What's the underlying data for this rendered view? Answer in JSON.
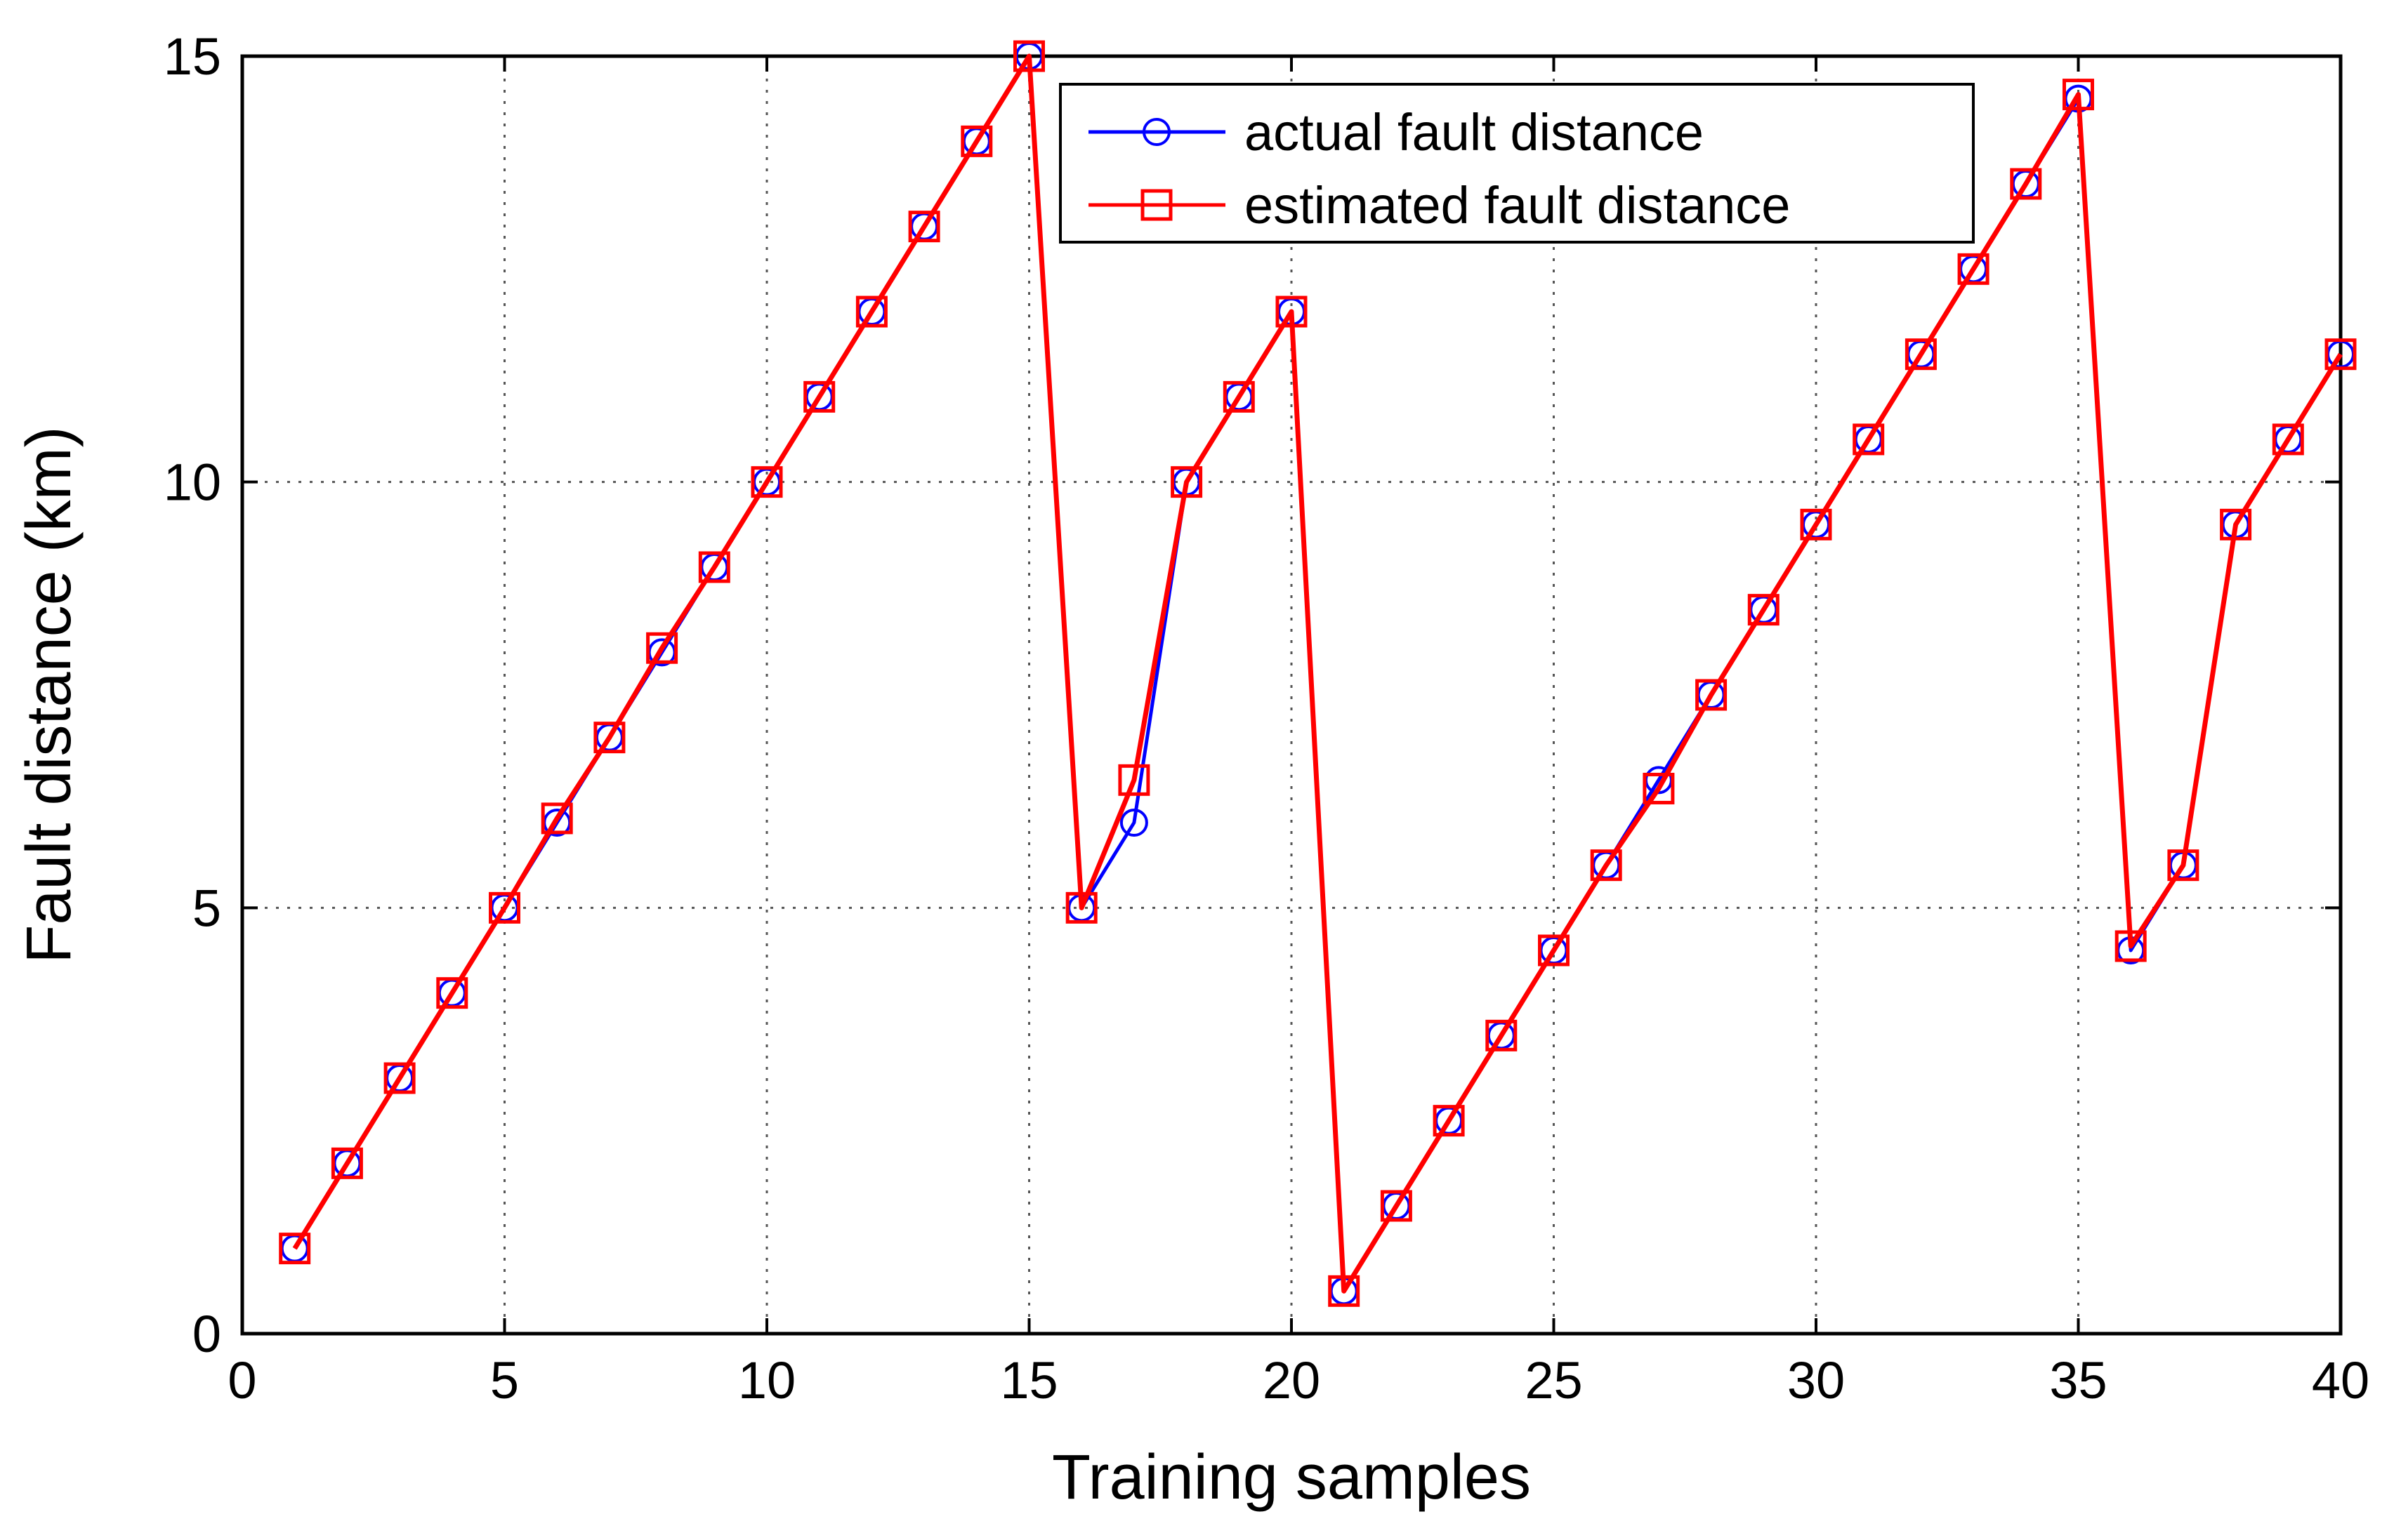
{
  "chart_data": {
    "type": "line",
    "title": "",
    "xlabel": "Training samples",
    "ylabel": "Fault distance (km)",
    "xlim": [
      0,
      40
    ],
    "ylim": [
      0,
      15
    ],
    "xticks": [
      0,
      5,
      10,
      15,
      20,
      25,
      30,
      35,
      40
    ],
    "yticks": [
      0,
      5,
      10,
      15
    ],
    "grid": true,
    "legend_position": "top-center",
    "x": [
      1,
      2,
      3,
      4,
      5,
      6,
      7,
      8,
      9,
      10,
      11,
      12,
      13,
      14,
      15,
      16,
      17,
      18,
      19,
      20,
      21,
      22,
      23,
      24,
      25,
      26,
      27,
      28,
      29,
      30,
      31,
      32,
      33,
      34,
      35,
      36,
      37,
      38,
      39,
      40
    ],
    "series": [
      {
        "name": "actual fault distance",
        "color": "#0000ff",
        "marker": "circle",
        "values": [
          1,
          2,
          3,
          4,
          5,
          6,
          7,
          8,
          9,
          10,
          11,
          12,
          13,
          14,
          15,
          5,
          6,
          10,
          11,
          12,
          0.5,
          1.5,
          2.5,
          3.5,
          4.5,
          5.5,
          6.5,
          7.5,
          8.5,
          9.5,
          10.5,
          11.5,
          12.5,
          13.5,
          14.5,
          4.5,
          5.5,
          9.5,
          10.5,
          11.5
        ]
      },
      {
        "name": "estimated fault distance",
        "color": "#ff0000",
        "marker": "square",
        "values": [
          1,
          2,
          3,
          4,
          5,
          6.05,
          7,
          8.05,
          9,
          10,
          11,
          12,
          13,
          14,
          15,
          5,
          6.5,
          10,
          11,
          12,
          0.5,
          1.5,
          2.5,
          3.5,
          4.5,
          5.5,
          6.4,
          7.5,
          8.5,
          9.5,
          10.5,
          11.5,
          12.5,
          13.5,
          14.55,
          4.55,
          5.5,
          9.5,
          10.5,
          11.5
        ]
      }
    ]
  }
}
